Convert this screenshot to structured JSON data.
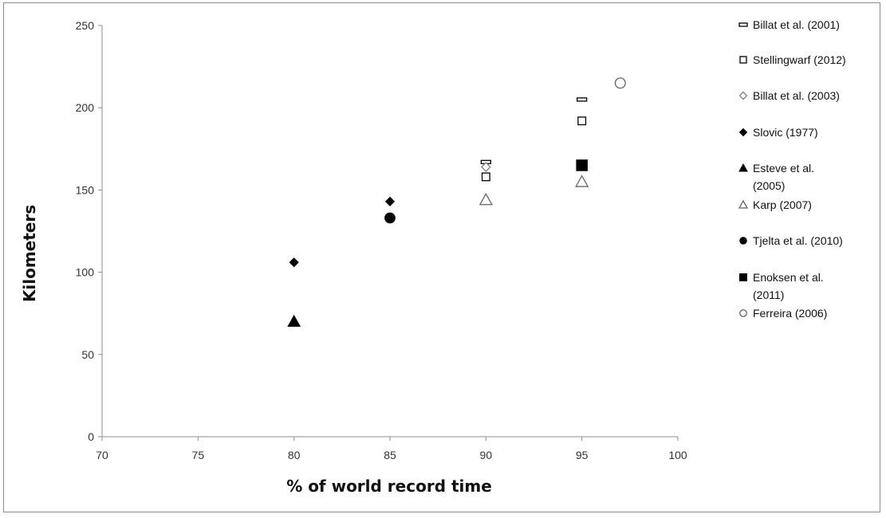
{
  "chart_data": {
    "type": "scatter",
    "title": "",
    "xlabel": "% of world record time",
    "ylabel": "Kilometers",
    "xlim": [
      70,
      100
    ],
    "ylim": [
      0,
      250
    ],
    "xticks": [
      "70",
      "75",
      "80",
      "85",
      "90",
      "95",
      "100"
    ],
    "yticks": [
      "0",
      "50",
      "100",
      "150",
      "200",
      "250"
    ],
    "grid": false,
    "legend_position": "right",
    "series": [
      {
        "name": "Billat et al. (2001)",
        "marker": "dash-open",
        "color": "#000000",
        "points": [
          [
            90,
            167
          ],
          [
            95,
            205
          ]
        ]
      },
      {
        "name": "Stellingwarf (2012)",
        "marker": "square-open",
        "color": "#000000",
        "points": [
          [
            90,
            158
          ],
          [
            95,
            192
          ]
        ]
      },
      {
        "name": "Billat et al. (2003)",
        "marker": "diamond-open",
        "color": "#808080",
        "points": [
          [
            90,
            164
          ]
        ]
      },
      {
        "name": "Slovic (1977)",
        "marker": "diamond-filled",
        "color": "#000000",
        "points": [
          [
            80,
            106
          ],
          [
            85,
            143
          ]
        ]
      },
      {
        "name": "Esteve et al. (2005)",
        "marker": "triangle-filled",
        "color": "#000000",
        "points": [
          [
            80,
            70
          ]
        ]
      },
      {
        "name": "Karp (2007)",
        "marker": "triangle-open",
        "color": "#666666",
        "points": [
          [
            90,
            144
          ],
          [
            95,
            155
          ]
        ]
      },
      {
        "name": "Tjelta et al. (2010)",
        "marker": "circle-filled",
        "color": "#000000",
        "points": [
          [
            85,
            133
          ]
        ]
      },
      {
        "name": "Enoksen et al. (2011)",
        "marker": "square-filled",
        "color": "#000000",
        "points": [
          [
            95,
            165
          ]
        ]
      },
      {
        "name": "Ferreira (2006)",
        "marker": "circle-open",
        "color": "#666666",
        "points": [
          [
            97,
            215
          ]
        ]
      }
    ]
  }
}
